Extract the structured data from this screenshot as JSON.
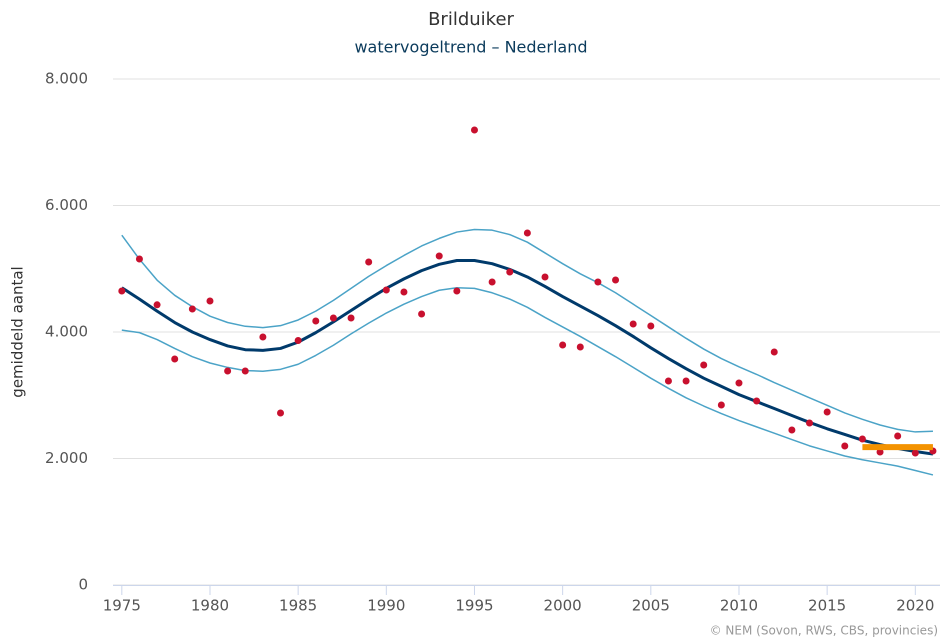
{
  "chart_data": {
    "type": "line",
    "title": "Brilduiker",
    "subtitle": "watervogeltrend – Nederland",
    "y_label": "gemiddeld aantal",
    "credits": "© NEM (Sovon, RWS, CBS, provincies)",
    "xlim": [
      1974.5,
      2021.4
    ],
    "xticks": [
      1975,
      1980,
      1985,
      1990,
      1995,
      2000,
      2005,
      2010,
      2015,
      2020
    ],
    "ylim": [
      0,
      8000
    ],
    "yticks": [
      {
        "value": 0,
        "label": "0"
      },
      {
        "value": 2000,
        "label": "2.000"
      },
      {
        "value": 4000,
        "label": "4.000"
      },
      {
        "value": 6000,
        "label": "6.000"
      },
      {
        "value": 8000,
        "label": "8.000"
      }
    ],
    "grid": true,
    "x": [
      1975,
      1976,
      1977,
      1978,
      1979,
      1980,
      1981,
      1982,
      1983,
      1984,
      1985,
      1986,
      1987,
      1988,
      1989,
      1990,
      1991,
      1992,
      1993,
      1994,
      1995,
      1996,
      1997,
      1998,
      1999,
      2000,
      2001,
      2002,
      2003,
      2004,
      2005,
      2006,
      2007,
      2008,
      2009,
      2010,
      2011,
      2012,
      2013,
      2014,
      2015,
      2016,
      2017,
      2018,
      2019,
      2020,
      2021
    ],
    "series": [
      {
        "type": "line",
        "color": "#4ba3c7",
        "width": 1.5,
        "values": [
          5530,
          5150,
          4820,
          4580,
          4400,
          4250,
          4150,
          4090,
          4070,
          4100,
          4190,
          4330,
          4500,
          4690,
          4880,
          5050,
          5210,
          5360,
          5480,
          5580,
          5620,
          5610,
          5540,
          5420,
          5250,
          5080,
          4920,
          4780,
          4620,
          4440,
          4260,
          4080,
          3900,
          3730,
          3580,
          3450,
          3330,
          3200,
          3080,
          2960,
          2840,
          2720,
          2620,
          2530,
          2460,
          2420,
          2430
        ]
      },
      {
        "type": "line",
        "color": "#4ba3c7",
        "width": 1.5,
        "values": [
          4030,
          3990,
          3880,
          3740,
          3610,
          3510,
          3440,
          3390,
          3380,
          3410,
          3490,
          3630,
          3790,
          3970,
          4140,
          4300,
          4440,
          4560,
          4660,
          4700,
          4690,
          4620,
          4520,
          4390,
          4230,
          4080,
          3930,
          3770,
          3610,
          3440,
          3270,
          3110,
          2960,
          2830,
          2710,
          2600,
          2500,
          2400,
          2300,
          2200,
          2120,
          2040,
          1980,
          1930,
          1880,
          1810,
          1740
        ]
      },
      {
        "type": "line",
        "color": "#003a6b",
        "width": 3,
        "values": [
          4700,
          4520,
          4330,
          4150,
          4000,
          3880,
          3780,
          3720,
          3710,
          3740,
          3840,
          3990,
          4160,
          4340,
          4520,
          4690,
          4840,
          4970,
          5070,
          5130,
          5130,
          5080,
          4990,
          4870,
          4720,
          4560,
          4410,
          4260,
          4100,
          3930,
          3750,
          3580,
          3420,
          3270,
          3140,
          3010,
          2900,
          2790,
          2680,
          2570,
          2470,
          2380,
          2290,
          2220,
          2160,
          2110,
          2070
        ]
      },
      {
        "type": "scatter",
        "color": "#c8102e",
        "values": [
          4648,
          5154,
          4430,
          3573,
          4364,
          4490,
          3383,
          3383,
          3921,
          2719,
          3866,
          4174,
          4221,
          4221,
          5107,
          4664,
          4632,
          4285,
          5202,
          4648,
          7194,
          4791,
          4949,
          5565,
          4870,
          3794,
          3763,
          4791,
          4822,
          4127,
          4095,
          3225,
          3225,
          3478,
          2846,
          3194,
          2909,
          3684,
          2451,
          2561,
          2735,
          2198,
          2308,
          2103,
          2356,
          2087,
          2119
        ]
      },
      {
        "type": "line",
        "color": "#f39200",
        "width": 6,
        "x": [
          2017,
          2021
        ],
        "values": [
          2180,
          2180
        ]
      }
    ]
  }
}
